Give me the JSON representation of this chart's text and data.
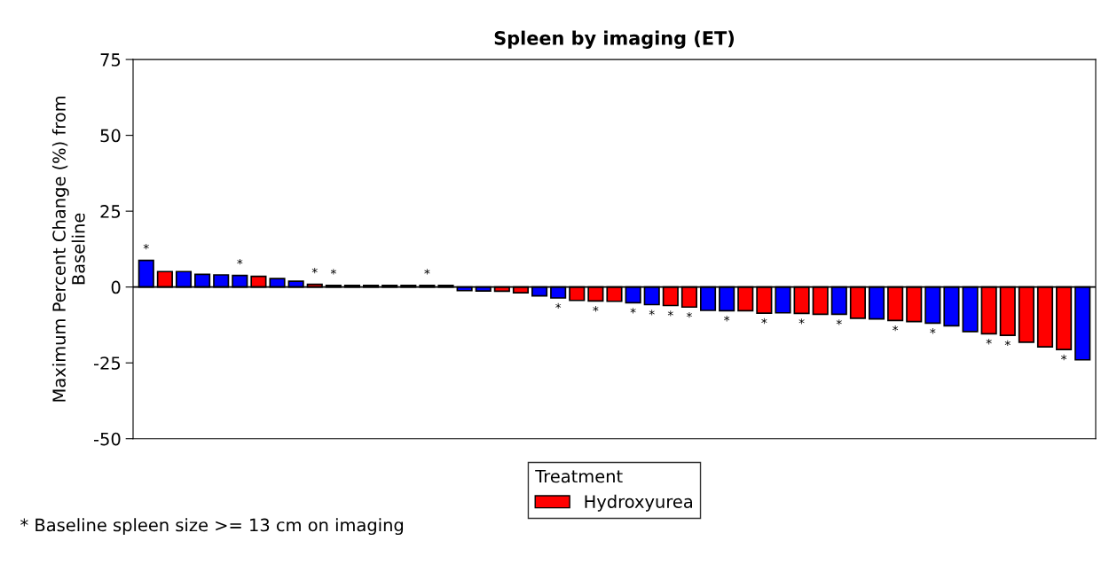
{
  "chart_data": {
    "type": "bar",
    "title": "Spleen by imaging (ET)",
    "ylabel": "Maximum Percent Change (%) from\nBaseline",
    "legend_title": "Treatment",
    "categories": [
      null,
      null,
      null,
      null,
      null,
      null,
      null,
      null,
      null,
      null,
      null,
      null,
      null,
      null,
      null,
      null,
      null,
      null,
      null,
      null,
      null,
      null,
      null,
      null,
      null,
      null,
      null,
      null,
      null,
      null,
      null,
      null,
      null,
      null,
      null,
      null,
      null,
      null,
      null,
      null,
      null,
      null,
      null,
      null,
      null,
      null,
      null,
      null,
      null,
      null,
      null
    ],
    "series": [
      {
        "color": "#0000ff",
        "values": [
          8.8,
          null,
          5.1,
          4.2,
          4.0,
          3.8,
          null,
          2.8,
          1.9,
          null,
          0.5,
          0.5,
          0.5,
          0.5,
          0.5,
          0.5,
          0.5,
          -1.2,
          -1.3,
          null,
          null,
          -2.9,
          -3.6,
          null,
          null,
          null,
          -5.2,
          -5.8,
          null,
          null,
          -7.7,
          -7.8,
          null,
          null,
          -8.5,
          null,
          null,
          -9.0,
          null,
          -10.5,
          null,
          null,
          -11.9,
          -12.8,
          -14.7,
          null,
          null,
          null,
          null,
          null,
          -24.0
        ],
        "value_labels": [
          "*",
          null,
          null,
          null,
          null,
          "*",
          null,
          null,
          null,
          null,
          "*",
          null,
          null,
          null,
          null,
          "*",
          null,
          null,
          null,
          null,
          null,
          null,
          "*",
          null,
          null,
          null,
          "*",
          "*",
          null,
          null,
          null,
          "*",
          null,
          null,
          null,
          null,
          null,
          "*",
          null,
          null,
          null,
          null,
          "*",
          null,
          null,
          null,
          null,
          null,
          null,
          null,
          null
        ]
      },
      {
        "name": "Hydroxyurea",
        "color": "#ff0000",
        "values": [
          null,
          5.1,
          null,
          null,
          null,
          null,
          3.5,
          null,
          null,
          0.9,
          null,
          null,
          null,
          null,
          null,
          null,
          null,
          null,
          null,
          -1.4,
          -1.9,
          null,
          null,
          -4.4,
          -4.6,
          -4.7,
          null,
          null,
          -6.1,
          -6.6,
          null,
          null,
          -7.8,
          -8.6,
          null,
          -8.7,
          -9.0,
          null,
          -10.3,
          null,
          -11.0,
          -11.4,
          null,
          null,
          null,
          -15.4,
          -15.9,
          -18.2,
          -19.7,
          -20.6,
          null
        ],
        "value_labels": [
          null,
          null,
          null,
          null,
          null,
          null,
          null,
          null,
          null,
          "*",
          null,
          null,
          null,
          null,
          null,
          null,
          null,
          null,
          null,
          null,
          null,
          null,
          null,
          null,
          "*",
          null,
          null,
          null,
          "*",
          "*",
          null,
          null,
          null,
          "*",
          null,
          "*",
          null,
          null,
          null,
          null,
          "*",
          null,
          null,
          null,
          null,
          "*",
          "*",
          null,
          null,
          "*",
          null
        ]
      }
    ],
    "ylim": [
      -50,
      75
    ],
    "yticks": [
      -50,
      -25,
      0,
      25,
      50,
      75
    ],
    "grid": false,
    "legend": "bottom",
    "tick_labels": "y",
    "ref_lines": [
      {
        "axis": "y",
        "value": 0,
        "color": "#000000"
      }
    ],
    "annotations": [
      "* Baseline spleen size >= 13 cm on imaging"
    ]
  }
}
